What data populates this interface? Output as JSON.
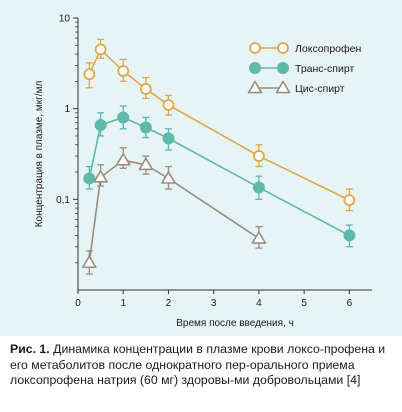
{
  "chart_data": {
    "type": "line",
    "xlabel": "Время после введения, ч",
    "ylabel": "Концентрация в плазме, мкг/мл",
    "yscale": "log",
    "xlim": [
      0,
      6.5
    ],
    "ylim": [
      0.01,
      10
    ],
    "x_ticks": [
      0,
      1,
      2,
      3,
      4,
      5,
      6
    ],
    "x_tick_labels": [
      "0",
      "1",
      "2",
      "3",
      "4",
      "5",
      "6"
    ],
    "y_ticks": [
      0.1,
      1,
      10
    ],
    "y_tick_labels": [
      "0,1",
      "1",
      "10"
    ],
    "grid": false,
    "legend_position": "top-right",
    "series": [
      {
        "name": "Локсопрофен",
        "color": "#e0a64a",
        "marker": "circle-open",
        "x": [
          0.25,
          0.5,
          1,
          1.5,
          2,
          4,
          6
        ],
        "y": [
          2.4,
          4.5,
          2.6,
          1.65,
          1.1,
          0.3,
          0.098
        ],
        "y_low": [
          1.7,
          3.6,
          2.0,
          1.3,
          0.85,
          0.23,
          0.075
        ],
        "y_high": [
          3.2,
          5.8,
          3.5,
          2.2,
          1.4,
          0.4,
          0.13
        ]
      },
      {
        "name": "Транс-спирт",
        "color": "#5fb8ab",
        "marker": "circle-filled",
        "x": [
          0.25,
          0.5,
          1,
          1.5,
          2,
          4,
          6
        ],
        "y": [
          0.17,
          0.66,
          0.8,
          0.62,
          0.47,
          0.135,
          0.04
        ],
        "y_low": [
          0.13,
          0.5,
          0.6,
          0.48,
          0.35,
          0.1,
          0.03
        ],
        "y_high": [
          0.23,
          0.9,
          1.07,
          0.8,
          0.6,
          0.18,
          0.052
        ]
      },
      {
        "name": "Цис-спирт",
        "color": "#9a8c80",
        "marker": "triangle-open",
        "x": [
          0.25,
          0.5,
          1,
          1.5,
          2,
          4,
          6
        ],
        "y": [
          0.02,
          0.175,
          0.27,
          0.24,
          0.17,
          0.037,
          null
        ],
        "y_low": [
          0.015,
          0.14,
          0.22,
          0.19,
          0.13,
          0.029,
          null
        ],
        "y_high": [
          0.027,
          0.24,
          0.37,
          0.3,
          0.23,
          0.05,
          null
        ]
      }
    ]
  },
  "caption": {
    "label": "Рис. 1.",
    "text": "Динамика концентрации в плазме крови локсо-профена и его метаболитов после однократного пер-орального приема локсопрофена натрия (60 мг) здоровы-ми добровольцами [4]"
  }
}
